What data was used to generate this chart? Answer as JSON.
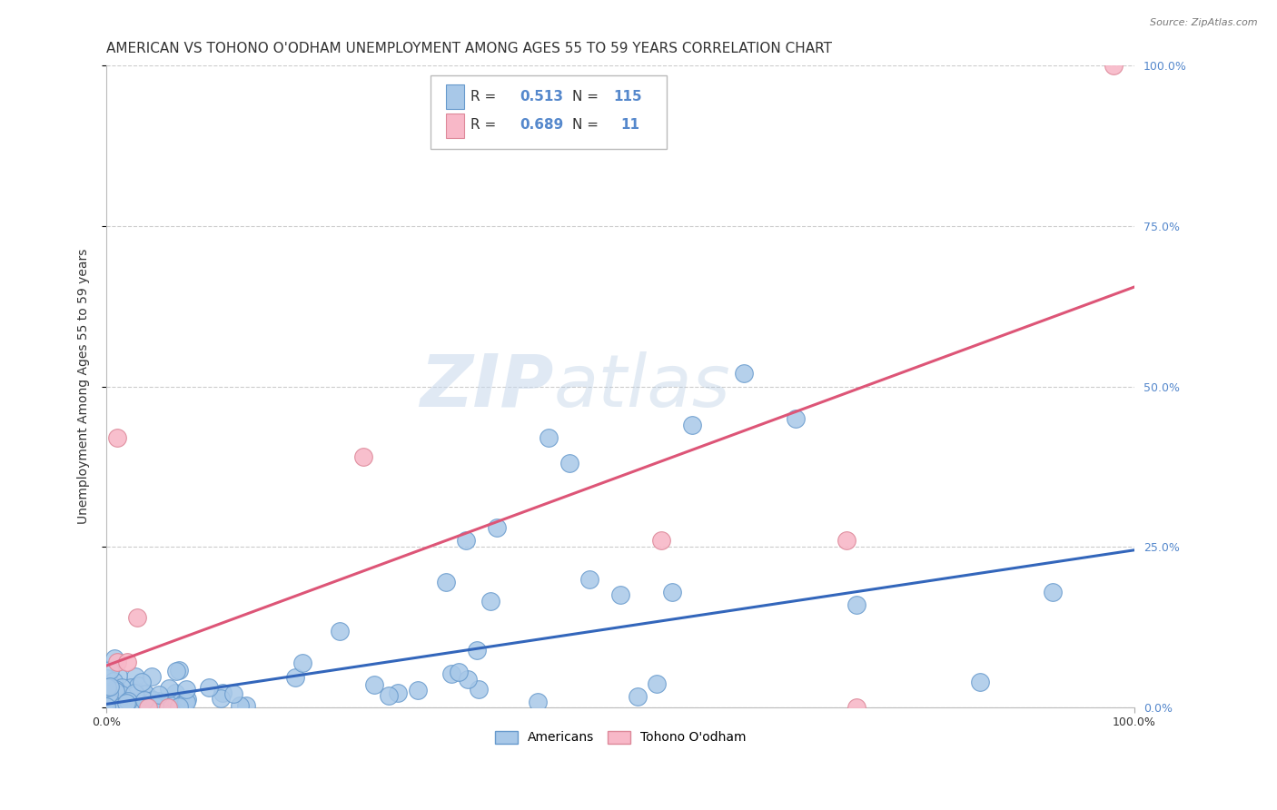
{
  "title": "AMERICAN VS TOHONO O'ODHAM UNEMPLOYMENT AMONG AGES 55 TO 59 YEARS CORRELATION CHART",
  "source": "Source: ZipAtlas.com",
  "ylabel": "Unemployment Among Ages 55 to 59 years",
  "xlim": [
    0.0,
    1.0
  ],
  "ylim": [
    0.0,
    1.0
  ],
  "ytick_labels_right": [
    "0.0%",
    "25.0%",
    "50.0%",
    "75.0%",
    "100.0%"
  ],
  "ytick_positions_right": [
    0.0,
    0.25,
    0.5,
    0.75,
    1.0
  ],
  "grid_color": "#cccccc",
  "background_color": "#ffffff",
  "americans_color": "#a8c8e8",
  "americans_edge_color": "#6699cc",
  "tohono_color": "#f8b8c8",
  "tohono_edge_color": "#dd8899",
  "blue_line_color": "#3366bb",
  "pink_line_color": "#dd5577",
  "right_tick_color": "#5588cc",
  "R_american": 0.513,
  "N_american": 115,
  "R_tohono": 0.689,
  "N_tohono": 11,
  "legend_label_american": "Americans",
  "legend_label_tohono": "Tohono O'odham",
  "watermark_zip": "ZIP",
  "watermark_atlas": "atlas",
  "title_fontsize": 11,
  "axis_label_fontsize": 10,
  "tick_fontsize": 9,
  "blue_line_x0": 0.0,
  "blue_line_y0": 0.005,
  "blue_line_x1": 1.0,
  "blue_line_y1": 0.245,
  "pink_line_x0": 0.0,
  "pink_line_y0": 0.065,
  "pink_line_x1": 1.0,
  "pink_line_y1": 0.655
}
